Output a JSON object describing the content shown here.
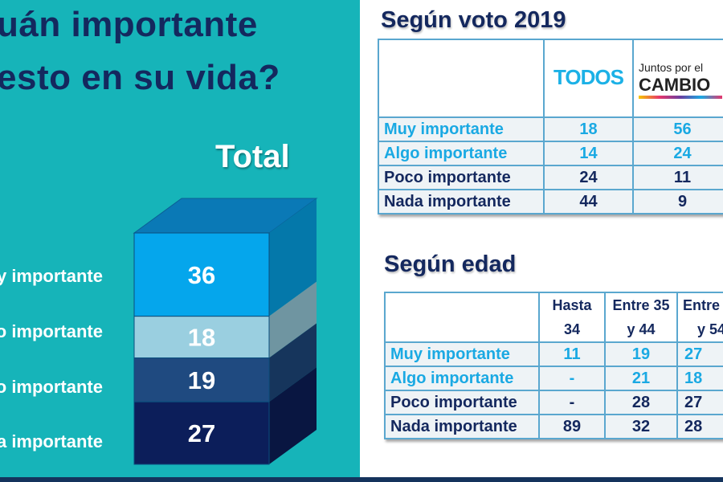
{
  "title_lines": [
    "uán importante",
    "esto en su vida?"
  ],
  "chart_data": {
    "type": "bar",
    "stacked": true,
    "title": "Total",
    "categories": [
      "Muy importante",
      "Algo importante",
      "Poco importante",
      "Nada importante"
    ],
    "values": [
      36,
      18,
      19,
      27
    ],
    "colors": [
      "#05a6ec",
      "#9acfe0",
      "#1f4a80",
      "#0c1e5a"
    ]
  },
  "vote_table": {
    "heading": "Según voto 2019",
    "columns": [
      "TODOS",
      "Juntos por el CAMBIO"
    ],
    "logo_todos": {
      "left": "TOD",
      "right": "S"
    },
    "logo_cambio": {
      "top": "Juntos por e",
      "bottom": "CAMBIO"
    },
    "rows": [
      {
        "label": "Muy importante",
        "values": [
          "18",
          "56"
        ]
      },
      {
        "label": "Algo importante",
        "values": [
          "14",
          "24"
        ]
      },
      {
        "label": "Poco importante",
        "values": [
          "24",
          "11"
        ]
      },
      {
        "label": "Nada importante",
        "values": [
          "44",
          "9"
        ]
      }
    ]
  },
  "age_table": {
    "heading": "Según edad",
    "columns": [
      [
        "Hasta",
        "34"
      ],
      [
        "Entre 35",
        "y 44"
      ],
      [
        "Entre",
        "y 54"
      ]
    ],
    "rows": [
      {
        "label": "Muy importante",
        "values": [
          "11",
          "19",
          "27"
        ]
      },
      {
        "label": "Algo importante",
        "values": [
          "-",
          "21",
          "18"
        ]
      },
      {
        "label": "Poco importante",
        "values": [
          "-",
          "28",
          "27"
        ]
      },
      {
        "label": "Nada importante",
        "values": [
          "89",
          "32",
          "28"
        ]
      }
    ]
  }
}
